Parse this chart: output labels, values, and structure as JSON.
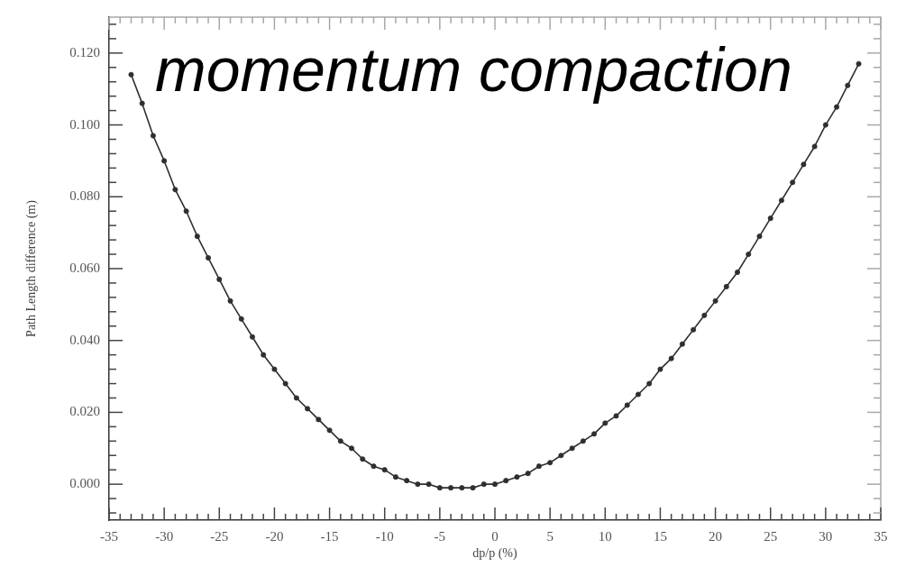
{
  "chart_data": {
    "type": "line",
    "title": "momentum compaction",
    "xlabel": "dp/p (%)",
    "ylabel": "Path Length difference (m)",
    "x": [
      -33,
      -32,
      -31,
      -30,
      -29,
      -28,
      -27,
      -26,
      -25,
      -24,
      -23,
      -22,
      -21,
      -20,
      -19,
      -18,
      -17,
      -16,
      -15,
      -14,
      -13,
      -12,
      -11,
      -10,
      -9,
      -8,
      -7,
      -6,
      -5,
      -4,
      -3,
      -2,
      -1,
      0,
      1,
      2,
      3,
      4,
      5,
      6,
      7,
      8,
      9,
      10,
      11,
      12,
      13,
      14,
      15,
      16,
      17,
      18,
      19,
      20,
      21,
      22,
      23,
      24,
      25,
      26,
      27,
      28,
      29,
      30,
      31,
      32,
      33
    ],
    "series": [
      {
        "color": "#2f2f2f",
        "values": [
          0.114,
          0.106,
          0.097,
          0.09,
          0.082,
          0.076,
          0.069,
          0.063,
          0.057,
          0.051,
          0.046,
          0.041,
          0.036,
          0.032,
          0.028,
          0.024,
          0.021,
          0.018,
          0.015,
          0.012,
          0.01,
          0.007,
          0.005,
          0.004,
          0.002,
          0.001,
          0.0,
          0.0,
          -0.001,
          -0.001,
          -0.001,
          -0.001,
          0.0,
          0.0,
          0.001,
          0.002,
          0.003,
          0.005,
          0.006,
          0.008,
          0.01,
          0.012,
          0.014,
          0.017,
          0.019,
          0.022,
          0.025,
          0.028,
          0.032,
          0.035,
          0.039,
          0.043,
          0.047,
          0.051,
          0.055,
          0.059,
          0.064,
          0.069,
          0.074,
          0.079,
          0.084,
          0.089,
          0.094,
          0.1,
          0.105,
          0.111,
          0.117
        ]
      }
    ],
    "xlim": [
      -35,
      35
    ],
    "xticks": [
      -35,
      {
        "value": -34,
        "label": null
      },
      {
        "value": -33,
        "label": null
      },
      {
        "value": -32,
        "label": null
      },
      {
        "value": -31,
        "label": null
      },
      -30,
      {
        "value": -29,
        "label": null
      },
      {
        "value": -28,
        "label": null
      },
      {
        "value": -27,
        "label": null
      },
      {
        "value": -26,
        "label": null
      },
      -25,
      {
        "value": -24,
        "label": null
      },
      {
        "value": -23,
        "label": null
      },
      {
        "value": -22,
        "label": null
      },
      {
        "value": -21,
        "label": null
      },
      -20,
      {
        "value": -19,
        "label": null
      },
      {
        "value": -18,
        "label": null
      },
      {
        "value": -17,
        "label": null
      },
      {
        "value": -16,
        "label": null
      },
      -15,
      {
        "value": -14,
        "label": null
      },
      {
        "value": -13,
        "label": null
      },
      {
        "value": -12,
        "label": null
      },
      {
        "value": -11,
        "label": null
      },
      -10,
      {
        "value": -9,
        "label": null
      },
      {
        "value": -8,
        "label": null
      },
      {
        "value": -7,
        "label": null
      },
      {
        "value": -6,
        "label": null
      },
      -5,
      {
        "value": -4,
        "label": null
      },
      {
        "value": -3,
        "label": null
      },
      {
        "value": -2,
        "label": null
      },
      {
        "value": -1,
        "label": null
      },
      0,
      {
        "value": 1,
        "label": null
      },
      {
        "value": 2,
        "label": null
      },
      {
        "value": 3,
        "label": null
      },
      {
        "value": 4,
        "label": null
      },
      5,
      {
        "value": 6,
        "label": null
      },
      {
        "value": 7,
        "label": null
      },
      {
        "value": 8,
        "label": null
      },
      {
        "value": 9,
        "label": null
      },
      10,
      {
        "value": 11,
        "label": null
      },
      {
        "value": 12,
        "label": null
      },
      {
        "value": 13,
        "label": null
      },
      {
        "value": 14,
        "label": null
      },
      15,
      {
        "value": 16,
        "label": null
      },
      {
        "value": 17,
        "label": null
      },
      {
        "value": 18,
        "label": null
      },
      {
        "value": 19,
        "label": null
      },
      20,
      {
        "value": 21,
        "label": null
      },
      {
        "value": 22,
        "label": null
      },
      {
        "value": 23,
        "label": null
      },
      {
        "value": 24,
        "label": null
      },
      25,
      {
        "value": 26,
        "label": null
      },
      {
        "value": 27,
        "label": null
      },
      {
        "value": 28,
        "label": null
      },
      {
        "value": 29,
        "label": null
      },
      30,
      {
        "value": 31,
        "label": null
      },
      {
        "value": 32,
        "label": null
      },
      {
        "value": 33,
        "label": null
      },
      {
        "value": 34,
        "label": null
      },
      35
    ],
    "ylim": [
      -0.01,
      0.13
    ],
    "yticks": [
      {
        "value": -0.008,
        "label": null
      },
      {
        "value": -0.004,
        "label": null
      },
      {
        "value": 0,
        "label": "0.000"
      },
      {
        "value": 0.004,
        "label": null
      },
      {
        "value": 0.008,
        "label": null
      },
      {
        "value": 0.012,
        "label": null
      },
      {
        "value": 0.016,
        "label": null
      },
      {
        "value": 0.02,
        "label": "0.020"
      },
      {
        "value": 0.024,
        "label": null
      },
      {
        "value": 0.028,
        "label": null
      },
      {
        "value": 0.032,
        "label": null
      },
      {
        "value": 0.036,
        "label": null
      },
      {
        "value": 0.04,
        "label": "0.040"
      },
      {
        "value": 0.044,
        "label": null
      },
      {
        "value": 0.048,
        "label": null
      },
      {
        "value": 0.052,
        "label": null
      },
      {
        "value": 0.056,
        "label": null
      },
      {
        "value": 0.06,
        "label": "0.060"
      },
      {
        "value": 0.064,
        "label": null
      },
      {
        "value": 0.068,
        "label": null
      },
      {
        "value": 0.072,
        "label": null
      },
      {
        "value": 0.076,
        "label": null
      },
      {
        "value": 0.08,
        "label": "0.080"
      },
      {
        "value": 0.084,
        "label": null
      },
      {
        "value": 0.088,
        "label": null
      },
      {
        "value": 0.092,
        "label": null
      },
      {
        "value": 0.096,
        "label": null
      },
      {
        "value": 0.1,
        "label": "0.100"
      },
      {
        "value": 0.104,
        "label": null
      },
      {
        "value": 0.108,
        "label": null
      },
      {
        "value": 0.112,
        "label": null
      },
      {
        "value": 0.116,
        "label": null
      },
      {
        "value": 0.12,
        "label": "0.120"
      },
      {
        "value": 0.124,
        "label": null
      },
      {
        "value": 0.128,
        "label": null
      }
    ],
    "grid": false,
    "marker": "circle",
    "line_style": "solid"
  }
}
